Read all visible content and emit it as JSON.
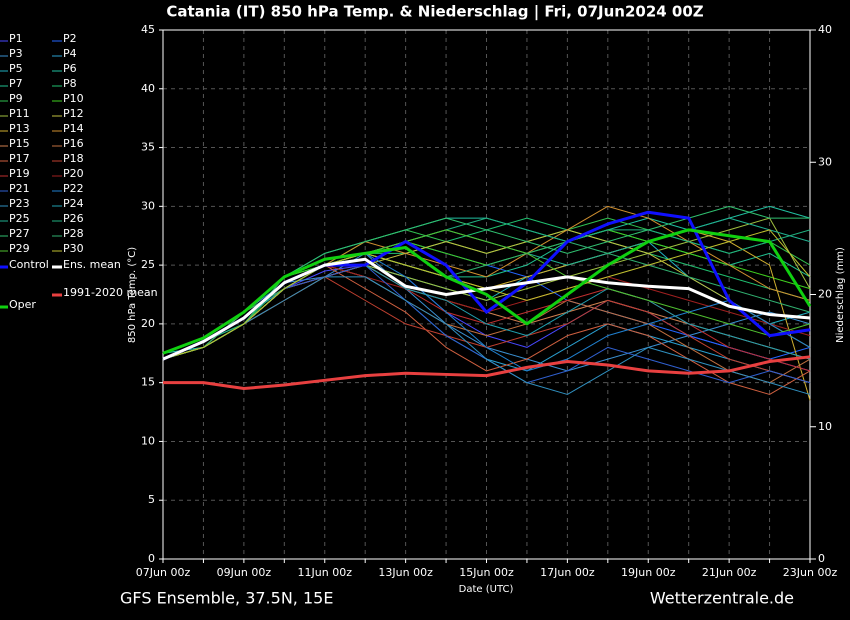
{
  "chart_data": {
    "type": "line",
    "title": "Catania  (IT)  850 hPa Temp. & Niederschlag | Fri, 07Jun2024 00Z",
    "x_label": "Date (UTC)",
    "y_label": "850 hPa Temp. (°C)",
    "y2_label": "Niederschlag (mm)",
    "footer_left": "GFS Ensemble, 37.5N, 15E",
    "footer_right": "Wetterzentrale.de",
    "categories": [
      "07Jun 00z",
      null,
      "09Jun 00z",
      null,
      "11Jun 00z",
      null,
      "13Jun 00z",
      null,
      "15Jun 00z",
      null,
      "17Jun 00z",
      null,
      "19Jun 00z",
      null,
      "21Jun 00z",
      null,
      "23Jun 00z"
    ],
    "ylim": [
      0,
      45
    ],
    "yticks": [
      0,
      5,
      10,
      15,
      20,
      25,
      30,
      35,
      40,
      45
    ],
    "y2lim": [
      0,
      40
    ],
    "y2ticks": [
      0,
      10,
      20,
      30,
      40
    ],
    "grid": true,
    "series": [
      {
        "name": "P1",
        "color": "#4848ff",
        "values": [
          17,
          18,
          20,
          23,
          24.5,
          25,
          24,
          21,
          19,
          18,
          20,
          22,
          21,
          19,
          18,
          17,
          16
        ]
      },
      {
        "name": "P2",
        "color": "#2466ff",
        "values": [
          17,
          18.5,
          20,
          23,
          25,
          26,
          27,
          26,
          25,
          24,
          22,
          21,
          20,
          19,
          18,
          17,
          18
        ]
      },
      {
        "name": "P3",
        "color": "#3a8fd0",
        "values": [
          17.5,
          18,
          21,
          23.5,
          24,
          26,
          23,
          20,
          18,
          17,
          16,
          17,
          18,
          19,
          20,
          21,
          20
        ]
      },
      {
        "name": "P4",
        "color": "#2a9fd0",
        "values": [
          17,
          18,
          20,
          24,
          25,
          24,
          22,
          19,
          17,
          16,
          18,
          20,
          19,
          18,
          17,
          16,
          15
        ]
      },
      {
        "name": "P5",
        "color": "#20b0c0",
        "values": [
          17,
          18.5,
          20.5,
          23,
          25,
          25,
          24,
          23,
          22,
          24,
          25,
          26,
          27,
          24,
          22,
          20,
          21
        ]
      },
      {
        "name": "P6",
        "color": "#20c0a0",
        "values": [
          17.5,
          18,
          21,
          24,
          26,
          27,
          28,
          29,
          29,
          28,
          27,
          28,
          29,
          28,
          29,
          30,
          29
        ]
      },
      {
        "name": "P7",
        "color": "#20c090",
        "values": [
          17,
          18,
          20,
          23,
          25,
          26,
          25,
          24,
          24,
          25,
          27,
          28,
          27,
          26,
          25,
          26,
          24
        ]
      },
      {
        "name": "P8",
        "color": "#20c070",
        "values": [
          17,
          18.5,
          20,
          23.5,
          25,
          26,
          26,
          27,
          28,
          29,
          28,
          27,
          26,
          25,
          24,
          23,
          22
        ]
      },
      {
        "name": "P9",
        "color": "#30c050",
        "values": [
          17,
          18,
          21,
          24,
          25,
          27,
          28,
          27,
          26,
          27,
          28,
          29,
          28,
          27,
          26,
          27,
          25
        ]
      },
      {
        "name": "P10",
        "color": "#40d020",
        "values": [
          17,
          18,
          20,
          24,
          25,
          26,
          27,
          26,
          25,
          26,
          27,
          28,
          27,
          26,
          25,
          24,
          23
        ]
      },
      {
        "name": "P11",
        "color": "#a0c040",
        "values": [
          17,
          18,
          20,
          23,
          24,
          25,
          24,
          23,
          22,
          23,
          24,
          25,
          26,
          27,
          28,
          29,
          23
        ]
      },
      {
        "name": "P12",
        "color": "#c0c040",
        "values": [
          17,
          18,
          20,
          22,
          24,
          25,
          26,
          27,
          26,
          27,
          28,
          27,
          26,
          24,
          22,
          20,
          18
        ]
      },
      {
        "name": "P13",
        "color": "#d0b030",
        "values": [
          17,
          18,
          21,
          23,
          25,
          26,
          25,
          24,
          23,
          24,
          25,
          26,
          27,
          28,
          27,
          25,
          13.5
        ]
      },
      {
        "name": "P14",
        "color": "#d09030",
        "values": [
          17,
          18,
          20,
          23,
          25,
          27,
          26,
          25,
          24,
          26,
          28,
          30,
          29,
          27,
          25,
          23,
          22
        ]
      },
      {
        "name": "P15",
        "color": "#d08050",
        "values": [
          17,
          18,
          20,
          23,
          24,
          25,
          23,
          22,
          21,
          20,
          21,
          22,
          21,
          20,
          19,
          18,
          17
        ]
      },
      {
        "name": "P16",
        "color": "#c07040",
        "values": [
          17,
          18,
          20,
          23,
          25,
          24,
          22,
          20,
          19,
          20,
          22,
          21,
          20,
          18,
          16,
          15,
          17
        ]
      },
      {
        "name": "P17",
        "color": "#d06040",
        "values": [
          17,
          18,
          20,
          23,
          25,
          23,
          21,
          18,
          16,
          17,
          19,
          20,
          19,
          17,
          15,
          14,
          16
        ]
      },
      {
        "name": "P18",
        "color": "#c04030",
        "values": [
          17,
          18,
          20,
          23,
          24,
          22,
          20,
          19,
          18,
          19,
          20,
          22,
          21,
          19,
          17,
          16,
          15
        ]
      },
      {
        "name": "P19",
        "color": "#c03030",
        "values": [
          17,
          18,
          20,
          22,
          24,
          25,
          23,
          21,
          20,
          21,
          22,
          23,
          22,
          20,
          18,
          17,
          16
        ]
      },
      {
        "name": "P20",
        "color": "#a02020",
        "values": [
          17,
          18,
          20,
          23,
          25,
          24,
          23,
          22,
          21,
          22,
          23,
          24,
          23,
          22,
          21,
          20,
          19
        ]
      },
      {
        "name": "P21",
        "color": "#3060d0",
        "values": [
          17,
          18,
          20,
          23,
          24,
          25,
          22,
          19,
          17,
          15,
          16,
          18,
          17,
          16,
          15,
          16,
          15
        ]
      },
      {
        "name": "P22",
        "color": "#2080d0",
        "values": [
          17,
          18,
          20,
          23,
          25,
          26,
          24,
          21,
          18,
          16,
          17,
          19,
          20,
          21,
          22,
          20,
          18
        ]
      },
      {
        "name": "P23",
        "color": "#3090c0",
        "values": [
          17,
          18,
          20,
          22,
          24,
          24,
          22,
          20,
          17,
          15,
          14,
          16,
          18,
          17,
          16,
          15,
          14
        ]
      },
      {
        "name": "P24",
        "color": "#20a0b0",
        "values": [
          17,
          18,
          20,
          23,
          25,
          25,
          23,
          22,
          20,
          19,
          21,
          23,
          22,
          20,
          19,
          18,
          17
        ]
      },
      {
        "name": "P25",
        "color": "#20b090",
        "values": [
          17,
          18,
          20,
          23,
          25,
          26,
          27,
          28,
          27,
          26,
          25,
          26,
          27,
          28,
          29,
          28,
          27
        ]
      },
      {
        "name": "P26",
        "color": "#20b080",
        "values": [
          17,
          18,
          20,
          23,
          25,
          26,
          27,
          28,
          29,
          28,
          27,
          28,
          28,
          27,
          26,
          27,
          28
        ]
      },
      {
        "name": "P27",
        "color": "#30c070",
        "values": [
          17,
          18,
          20,
          24,
          26,
          27,
          28,
          29,
          28,
          27,
          26,
          27,
          28,
          29,
          30,
          29,
          29
        ]
      },
      {
        "name": "P28",
        "color": "#30b070",
        "values": [
          17,
          18,
          21,
          23,
          25,
          26,
          25,
          24,
          25,
          26,
          27,
          26,
          25,
          24,
          23,
          22,
          21
        ]
      },
      {
        "name": "P29",
        "color": "#50c030",
        "values": [
          17,
          18,
          20,
          23,
          25,
          26,
          27,
          28,
          27,
          26,
          24,
          23,
          22,
          21,
          20,
          19,
          20
        ]
      },
      {
        "name": "P30",
        "color": "#c0c030",
        "values": [
          17,
          18,
          20,
          23,
          25,
          26,
          25,
          24,
          23,
          22,
          23,
          24,
          25,
          26,
          27,
          28,
          24
        ]
      },
      {
        "name": "Control",
        "color": "#1010ff",
        "values": [
          17,
          18.5,
          20.5,
          23.5,
          25,
          25,
          27,
          25,
          21,
          23.5,
          27,
          28.5,
          29.5,
          29,
          22,
          19,
          19.5
        ]
      },
      {
        "name": "Ens. mean",
        "color": "#ffffff",
        "values": [
          17,
          18.5,
          20.5,
          23.5,
          25,
          25.5,
          23.2,
          22.5,
          23,
          23.5,
          24,
          23.5,
          23.2,
          23,
          21.5,
          20.8,
          20.5
        ]
      },
      {
        "name": "Oper",
        "color": "#10d010",
        "values": [
          17.5,
          18.8,
          21,
          24,
          25.5,
          26,
          26.5,
          24,
          22.5,
          20,
          22.5,
          25,
          27,
          28,
          27.5,
          27,
          21.5
        ]
      },
      {
        "name": "1991-2020 mean",
        "color": "#e84040",
        "values": [
          15,
          15,
          14.5,
          14.8,
          15.2,
          15.6,
          15.8,
          15.7,
          15.6,
          16.3,
          16.8,
          16.5,
          16,
          15.8,
          16,
          16.8,
          17.2
        ]
      }
    ]
  }
}
